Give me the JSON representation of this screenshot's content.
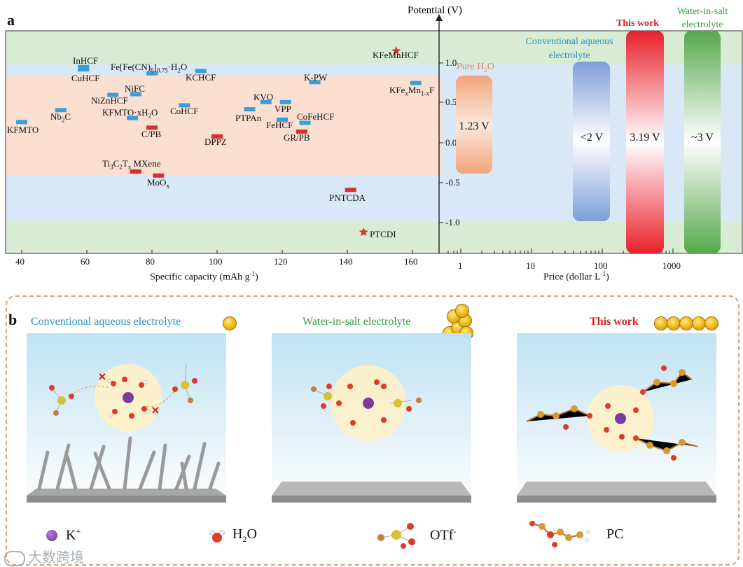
{
  "panel_a": {
    "label": "a",
    "potential_axis_title": "Potential (V)",
    "potential_ticks": [
      "1.0",
      "0.5",
      "0.0",
      "-0.5",
      "-1.0"
    ],
    "capacity_axis_title": "Specific capacity (mAh g",
    "capacity_axis_sup": "-1",
    "capacity_axis_close": ")",
    "capacity_ticks": [
      "40",
      "60",
      "80",
      "100",
      "120",
      "140",
      "160"
    ],
    "price_axis_title": "Price (dollar L",
    "price_axis_sup": "-1",
    "price_axis_close": ")",
    "price_ticks": [
      "1",
      "10",
      "100",
      "1000"
    ],
    "materials": [
      {
        "name": "InHCF",
        "capacity": 59,
        "potential": 0.95,
        "color": "blue"
      },
      {
        "name": "CuHCF",
        "capacity": 59,
        "potential": 0.92,
        "color": "blue"
      },
      {
        "name": "Fe[Fe(CN)6]0.75·H2O",
        "capacity": 80,
        "potential": 0.87,
        "color": "blue"
      },
      {
        "name": "KCHCF",
        "capacity": 95,
        "potential": 0.9,
        "color": "blue"
      },
      {
        "name": "NiFC",
        "capacity": 75,
        "potential": 0.61,
        "color": "blue"
      },
      {
        "name": "NiZnHCF",
        "capacity": 68,
        "potential": 0.6,
        "color": "blue"
      },
      {
        "name": "KFMTO·xH2O",
        "capacity": 74,
        "potential": 0.31,
        "color": "blue"
      },
      {
        "name": "CoHCF",
        "capacity": 90,
        "potential": 0.47,
        "color": "blue"
      },
      {
        "name": "Nb2C",
        "capacity": 52,
        "potential": 0.41,
        "color": "blue"
      },
      {
        "name": "KFMTO",
        "capacity": 40,
        "potential": 0.26,
        "color": "blue"
      },
      {
        "name": "C/PB",
        "capacity": 80,
        "potential": 0.19,
        "color": "red"
      },
      {
        "name": "DPPZ",
        "capacity": 100,
        "potential": 0.08,
        "color": "red"
      },
      {
        "name": "K-PW",
        "capacity": 130,
        "potential": 0.76,
        "color": "blue"
      },
      {
        "name": "KVO",
        "capacity": 115,
        "potential": 0.51,
        "color": "blue"
      },
      {
        "name": "VPP",
        "capacity": 121,
        "potential": 0.51,
        "color": "blue"
      },
      {
        "name": "PTPAn",
        "capacity": 110,
        "potential": 0.42,
        "color": "blue"
      },
      {
        "name": "FeHCF",
        "capacity": 120,
        "potential": 0.29,
        "color": "blue"
      },
      {
        "name": "CoFeHCF",
        "capacity": 127,
        "potential": 0.25,
        "color": "blue"
      },
      {
        "name": "GR/PB",
        "capacity": 126,
        "potential": 0.14,
        "color": "red"
      },
      {
        "name": "KFexMn1-xF",
        "capacity": 161,
        "potential": 0.75,
        "color": "blue"
      },
      {
        "name": "Ti3C2Tx MXene",
        "capacity": 75,
        "potential": -0.36,
        "color": "red"
      },
      {
        "name": "MoOx",
        "capacity": 82,
        "potential": -0.41,
        "color": "red"
      },
      {
        "name": "PNTCDA",
        "capacity": 141,
        "potential": -0.59,
        "color": "red"
      },
      {
        "name": "KFeMnHCF",
        "capacity": 155,
        "potential": 1.15,
        "color": "star"
      },
      {
        "name": "PTCDI",
        "capacity": 145,
        "potential": -1.12,
        "color": "star"
      }
    ],
    "price_bars": [
      {
        "title": "Pure H2O",
        "value_label": "1.23 V"
      },
      {
        "title": "Conventional aqueous electrolyte",
        "value_label": "<2 V"
      },
      {
        "title": "This work",
        "value_label": "3.19 V"
      },
      {
        "title": "Water-in-salt electrolyte",
        "value_label": "~3 V"
      }
    ],
    "bands": {
      "green": "#d7ecd2",
      "blue": "#d9e8f6",
      "orange": "#fbe0d2"
    },
    "colors": {
      "blue_mark": "#3a9fd8",
      "red_mark": "#d63030",
      "star": "#d63030"
    }
  },
  "panel_b": {
    "label": "b",
    "scenes": [
      {
        "title": "Conventional aqueous electrolyte",
        "color": "#2d8fc4"
      },
      {
        "title": "Water-in-salt electrolyte",
        "color": "#3e9a3e"
      },
      {
        "title": "This work",
        "color": "#d62020"
      }
    ],
    "legend": {
      "k": "K",
      "k_sup": "+",
      "h2o": "H2O",
      "otf": "OTf",
      "otf_sup": "-",
      "pc": "PC"
    }
  },
  "watermark": "大数跨境"
}
